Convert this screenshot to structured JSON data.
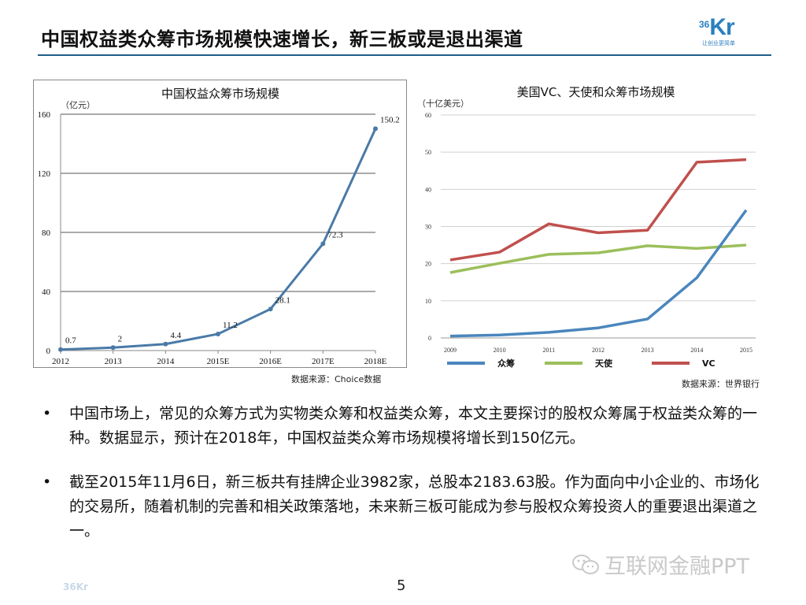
{
  "title": "中国权益类众筹市场规模快速增长，新三板或是退出渠道",
  "logo": {
    "number": "36",
    "letters": "Kr",
    "tagline": "让创业更简单"
  },
  "chart_data": [
    {
      "type": "line",
      "title": "中国权益众筹市场规模",
      "ylabel": "（亿元）",
      "categories": [
        "2012",
        "2013",
        "2014",
        "2015E",
        "2016E",
        "2017E",
        "2018E"
      ],
      "values": [
        0.7,
        2,
        4.4,
        11.2,
        28.1,
        72.3,
        150.2
      ],
      "data_labels": [
        "0.7",
        "2",
        "4.4",
        "11.2",
        "28.1",
        "72.3",
        "150.2"
      ],
      "ylim": [
        0,
        160
      ],
      "yticks": [
        0,
        40,
        80,
        120,
        160
      ],
      "color": "#4a7aa7",
      "grid": true,
      "source": "数据来源：Choice数据"
    },
    {
      "type": "line",
      "title": "美国VC、天使和众筹市场规模",
      "ylabel": "（十亿美元）",
      "categories": [
        "2009",
        "2010",
        "2011",
        "2012",
        "2013",
        "2014",
        "2015"
      ],
      "ylim": [
        0,
        60
      ],
      "yticks": [
        0,
        10,
        20,
        30,
        40,
        50,
        60
      ],
      "grid": true,
      "legend": "bottom",
      "series": [
        {
          "name": "众筹",
          "color": "#4a86bd",
          "values": [
            0.5,
            0.8,
            1.5,
            2.7,
            5.1,
            16.2,
            34.4
          ]
        },
        {
          "name": "天使",
          "color": "#9bbf5b",
          "values": [
            17.6,
            20.1,
            22.5,
            22.9,
            24.8,
            24.1,
            25.0
          ]
        },
        {
          "name": "VC",
          "color": "#c0504d",
          "values": [
            21.0,
            23.1,
            30.7,
            28.3,
            29.0,
            47.3,
            48.0
          ]
        }
      ],
      "source": "数据来源：世界银行"
    }
  ],
  "bullets": [
    "中国市场上，常见的众筹方式为实物类众筹和权益类众筹，本文主要探讨的股权众筹属于权益类众筹的一种。数据显示，预计在2018年，中国权益类众筹市场规模将增长到150亿元。",
    "截至2015年11月6日，新三板共有挂牌企业3982家，总股本2183.63股。作为面向中小企业的、市场化的交易所，随着机制的完善和相关政策落地，未来新三板可能成为参与股权众筹投资人的重要退出渠道之一。"
  ],
  "bullet_symbol": "•",
  "watermark": "互联网金融PPT",
  "page_number": "5",
  "footer_logo": "36Kr"
}
